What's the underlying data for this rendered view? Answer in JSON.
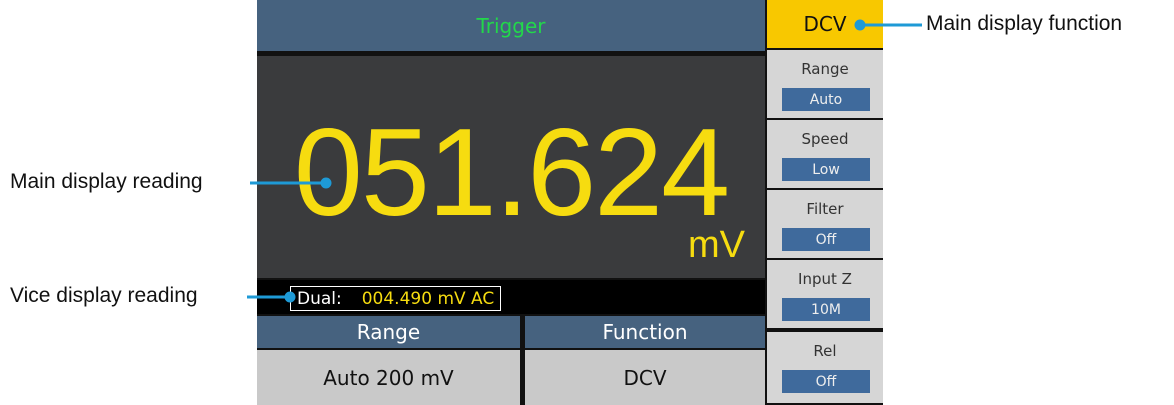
{
  "header": {
    "title": "Trigger",
    "function": "DCV"
  },
  "display": {
    "reading": "051.624",
    "unit": "mV",
    "dual_label": "Dual:",
    "dual_value": "004.490 mV AC"
  },
  "bottom": [
    {
      "label": "Range",
      "value": "Auto 200 mV"
    },
    {
      "label": "Function",
      "value": "DCV"
    }
  ],
  "menu": [
    {
      "label": "Range",
      "value": "Auto"
    },
    {
      "label": "Speed",
      "value": "Low"
    },
    {
      "label": "Filter",
      "value": "Off"
    },
    {
      "label": "Input Z",
      "value": "10M"
    },
    {
      "label": "Rel",
      "value": "Off"
    }
  ],
  "annotations": [
    "Main display function",
    "Main display reading",
    "Vice display reading"
  ]
}
